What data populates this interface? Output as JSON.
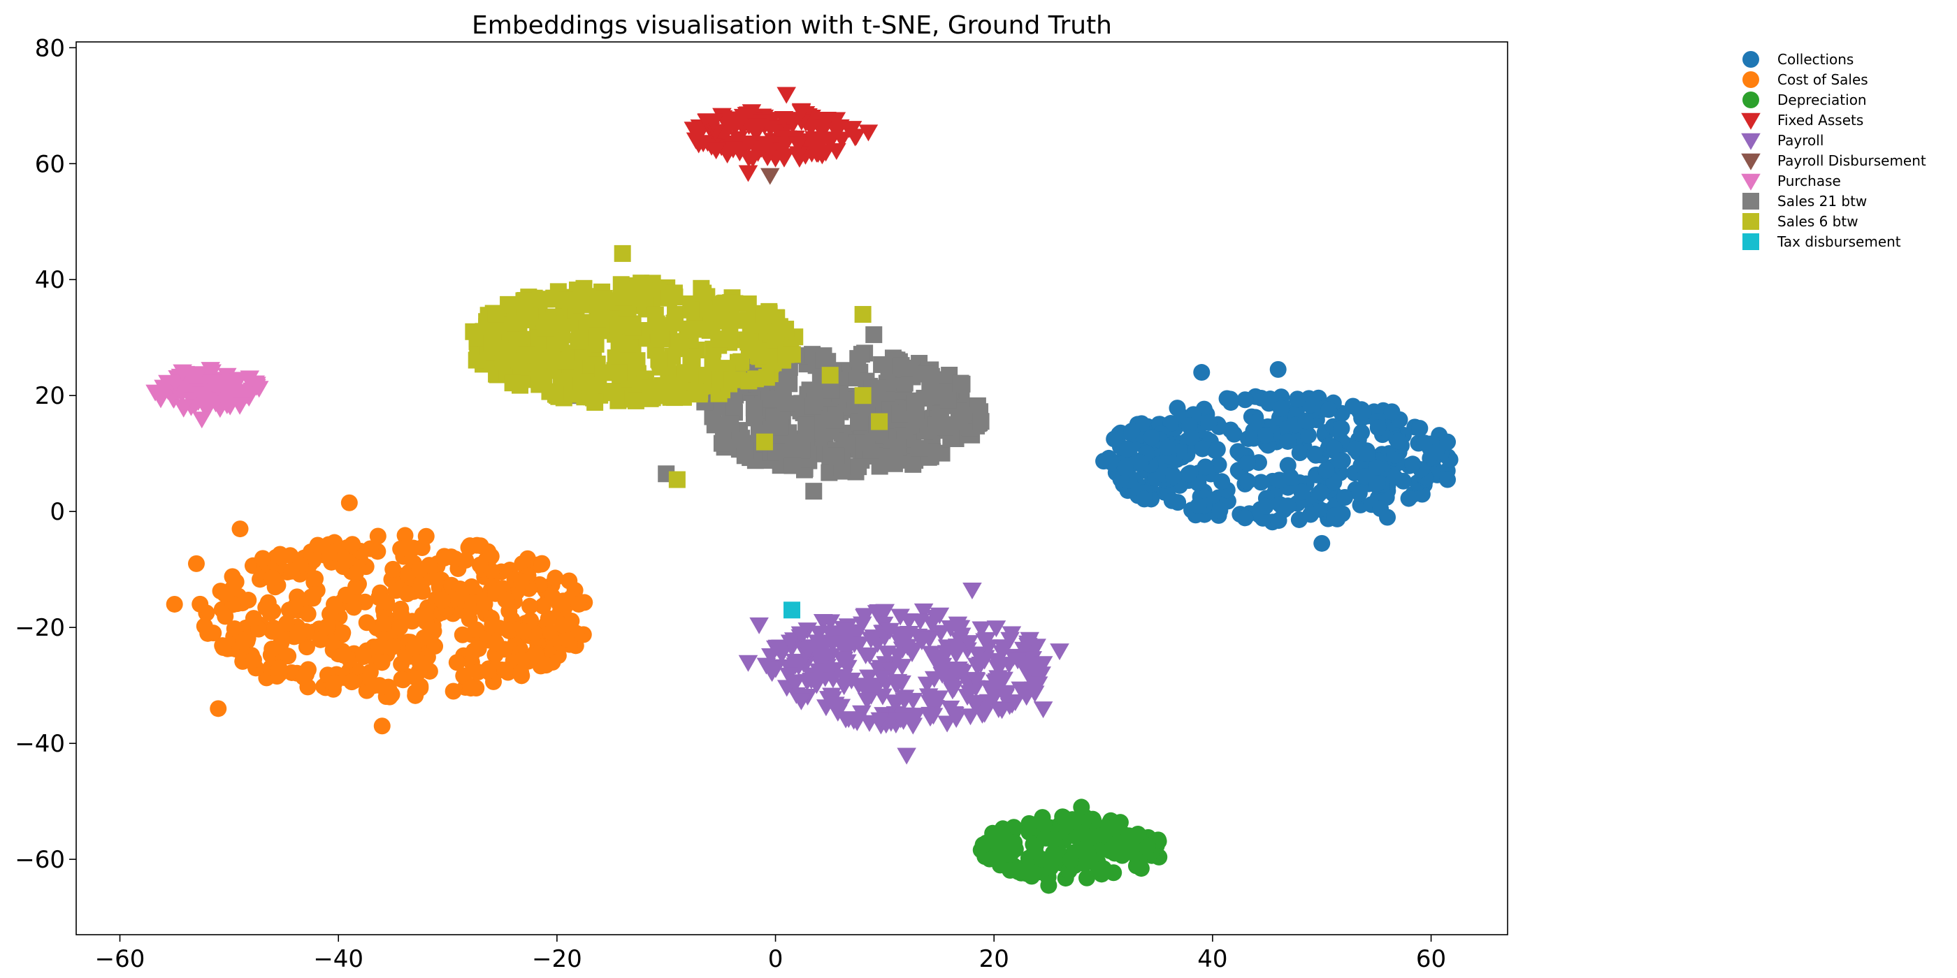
{
  "chart_data": {
    "type": "scatter",
    "title": "Embeddings visualisation with t-SNE, Ground Truth",
    "xlabel": "",
    "ylabel": "",
    "xlim": [
      -64,
      67
    ],
    "ylim": [
      -73,
      81
    ],
    "x_ticks": [
      -60,
      -40,
      -20,
      0,
      20,
      40,
      60
    ],
    "y_ticks": [
      -60,
      -40,
      -20,
      0,
      20,
      40,
      60,
      80
    ],
    "x_tick_labels": [
      "−60",
      "−40",
      "−20",
      "0",
      "20",
      "40",
      "60"
    ],
    "y_tick_labels": [
      "−60",
      "−40",
      "−20",
      "0",
      "20",
      "40",
      "60",
      "80"
    ],
    "grid": false,
    "legend_placement": "outside-top-right",
    "series": [
      {
        "name": "Collections",
        "marker": "circle",
        "color": "#1f77b4",
        "cluster": {
          "center": [
            46,
            9
          ],
          "spread": [
            16,
            11
          ],
          "count": 380
        },
        "points": [
          [
            31,
            12.5
          ],
          [
            61.5,
            12
          ],
          [
            50,
            -5.5
          ],
          [
            39,
            24
          ],
          [
            46,
            24.5
          ],
          [
            61.5,
            5.5
          ],
          [
            32,
            7.5
          ],
          [
            56,
            -1
          ]
        ]
      },
      {
        "name": "Cost of Sales",
        "marker": "circle",
        "color": "#ff7f0e",
        "cluster": {
          "center": [
            -35,
            -18
          ],
          "spread": [
            18,
            14
          ],
          "count": 460
        },
        "points": [
          [
            -55,
            -16
          ],
          [
            -18,
            -16
          ],
          [
            -39,
            1.5
          ],
          [
            -36,
            -37
          ],
          [
            -53,
            -9
          ],
          [
            -51,
            -34
          ],
          [
            -49,
            -3
          ],
          [
            -21,
            -26.5
          ]
        ]
      },
      {
        "name": "Depreciation",
        "marker": "circle",
        "color": "#2ca02c",
        "cluster": {
          "center": [
            27,
            -58
          ],
          "spread": [
            8.5,
            5.5
          ],
          "count": 170
        },
        "points": [
          [
            19,
            -57.5
          ],
          [
            34,
            -58
          ],
          [
            28,
            -51
          ],
          [
            25,
            -64.5
          ]
        ]
      },
      {
        "name": "Fixed Assets",
        "marker": "triangle-down",
        "color": "#d62728",
        "cluster": {
          "center": [
            0,
            65
          ],
          "spread": [
            7.5,
            4.5
          ],
          "count": 130
        },
        "points": [
          [
            -7.5,
            66
          ],
          [
            8.5,
            65.5
          ],
          [
            1,
            72
          ],
          [
            -2.5,
            58.5
          ]
        ]
      },
      {
        "name": "Payroll",
        "marker": "triangle-down",
        "color": "#9467bd",
        "cluster": {
          "center": [
            12,
            -27
          ],
          "spread": [
            13,
            10
          ],
          "count": 300
        },
        "points": [
          [
            -1.5,
            -19.5
          ],
          [
            26,
            -24
          ],
          [
            18,
            -13.5
          ],
          [
            12,
            -42
          ],
          [
            -2.5,
            -26
          ],
          [
            24.5,
            -34
          ]
        ]
      },
      {
        "name": "Payroll Disbursement",
        "marker": "triangle-down",
        "color": "#8c564b",
        "cluster": null,
        "points": [
          [
            -0.5,
            58
          ]
        ]
      },
      {
        "name": "Purchase",
        "marker": "triangle-down",
        "color": "#e377c2",
        "cluster": {
          "center": [
            -52,
            21
          ],
          "spread": [
            4.8,
            3.6
          ],
          "count": 90
        },
        "points": [
          [
            -56,
            21.5
          ],
          [
            -47.5,
            22
          ],
          [
            -52.5,
            16
          ]
        ]
      },
      {
        "name": "Sales 21 btw",
        "marker": "square",
        "color": "#7f7f7f",
        "cluster": {
          "center": [
            6,
            17
          ],
          "spread": [
            13,
            10.5
          ],
          "count": 360
        },
        "points": [
          [
            -19,
            20
          ],
          [
            15.5,
            14.5
          ],
          [
            9,
            30.5
          ],
          [
            3.5,
            3.5
          ],
          [
            -10,
            6.5
          ]
        ]
      },
      {
        "name": "Sales 6 btw",
        "marker": "square",
        "color": "#bcbd22",
        "cluster": {
          "center": [
            -13,
            29
          ],
          "spread": [
            15,
            10.5
          ],
          "count": 420
        },
        "points": [
          [
            -26,
            29
          ],
          [
            -14,
            44.5
          ],
          [
            -9,
            5.5
          ],
          [
            8,
            34
          ],
          [
            9.5,
            15.5
          ],
          [
            8,
            20
          ],
          [
            5,
            23.5
          ],
          [
            -1,
            12
          ]
        ]
      },
      {
        "name": "Tax disbursement",
        "marker": "square",
        "color": "#17becf",
        "cluster": null,
        "points": [
          [
            1.5,
            -17
          ]
        ]
      }
    ]
  }
}
